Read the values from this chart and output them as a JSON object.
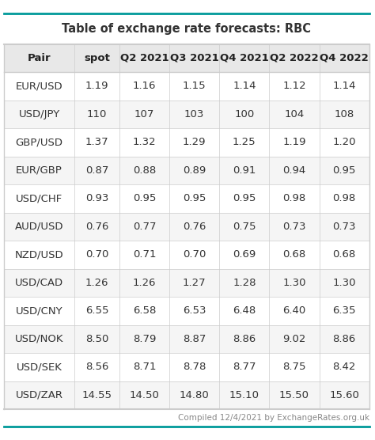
{
  "title": "Table of exchange rate forecasts: RBC",
  "columns": [
    "Pair",
    "spot",
    "Q2 2021",
    "Q3 2021",
    "Q4 2021",
    "Q2 2022",
    "Q4 2022"
  ],
  "rows": [
    [
      "EUR/USD",
      "1.19",
      "1.16",
      "1.15",
      "1.14",
      "1.12",
      "1.14"
    ],
    [
      "USD/JPY",
      "110",
      "107",
      "103",
      "100",
      "104",
      "108"
    ],
    [
      "GBP/USD",
      "1.37",
      "1.32",
      "1.29",
      "1.25",
      "1.19",
      "1.20"
    ],
    [
      "EUR/GBP",
      "0.87",
      "0.88",
      "0.89",
      "0.91",
      "0.94",
      "0.95"
    ],
    [
      "USD/CHF",
      "0.93",
      "0.95",
      "0.95",
      "0.95",
      "0.98",
      "0.98"
    ],
    [
      "AUD/USD",
      "0.76",
      "0.77",
      "0.76",
      "0.75",
      "0.73",
      "0.73"
    ],
    [
      "NZD/USD",
      "0.70",
      "0.71",
      "0.70",
      "0.69",
      "0.68",
      "0.68"
    ],
    [
      "USD/CAD",
      "1.26",
      "1.26",
      "1.27",
      "1.28",
      "1.30",
      "1.30"
    ],
    [
      "USD/CNY",
      "6.55",
      "6.58",
      "6.53",
      "6.48",
      "6.40",
      "6.35"
    ],
    [
      "USD/NOK",
      "8.50",
      "8.79",
      "8.87",
      "8.86",
      "9.02",
      "8.86"
    ],
    [
      "USD/SEK",
      "8.56",
      "8.71",
      "8.78",
      "8.77",
      "8.75",
      "8.42"
    ],
    [
      "USD/ZAR",
      "14.55",
      "14.50",
      "14.80",
      "15.10",
      "15.50",
      "15.60"
    ]
  ],
  "footer": "Compiled 12/4/2021 by ExchangeRates.org.uk",
  "bg_color": "#ffffff",
  "header_bg": "#e8e8e8",
  "row_alt_bg": "#f5f5f5",
  "row_bg": "#ffffff",
  "border_color": "#cccccc",
  "title_fontsize": 10.5,
  "header_fontsize": 9.5,
  "cell_fontsize": 9.5,
  "footer_fontsize": 7.5,
  "text_color": "#333333",
  "header_text_color": "#222222"
}
